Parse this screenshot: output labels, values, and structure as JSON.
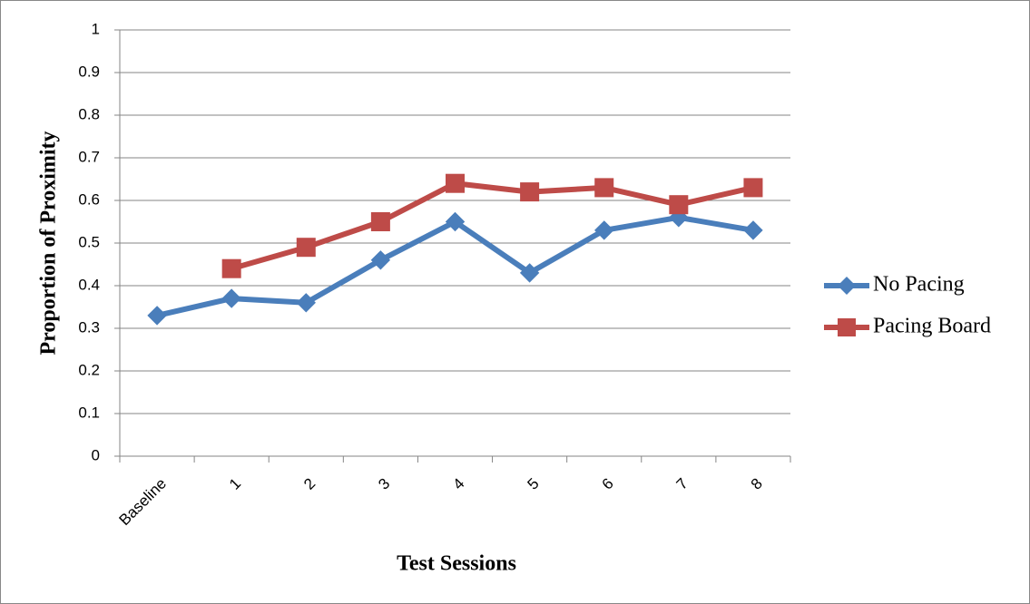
{
  "chart_data": {
    "type": "line",
    "y_label": "Proportion of Proximity",
    "x_label": "Test Sessions",
    "categories": [
      "Baseline",
      "1",
      "2",
      "3",
      "4",
      "5",
      "6",
      "7",
      "8"
    ],
    "series": [
      {
        "name": "No Pacing",
        "color": "#4a7ebb",
        "marker": "diamond",
        "values": [
          0.33,
          0.37,
          0.36,
          0.46,
          0.55,
          0.43,
          0.53,
          0.56,
          0.53
        ]
      },
      {
        "name": "Pacing Board",
        "color": "#be4b48",
        "marker": "square",
        "values": [
          null,
          0.44,
          0.49,
          0.55,
          0.64,
          0.62,
          0.63,
          0.59,
          0.63
        ]
      }
    ],
    "ylim": [
      0,
      1
    ],
    "yticks": [
      0,
      0.1,
      0.2,
      0.3,
      0.4,
      0.5,
      0.6,
      0.7,
      0.8,
      0.9,
      1
    ],
    "grid": true,
    "legend": "right"
  }
}
